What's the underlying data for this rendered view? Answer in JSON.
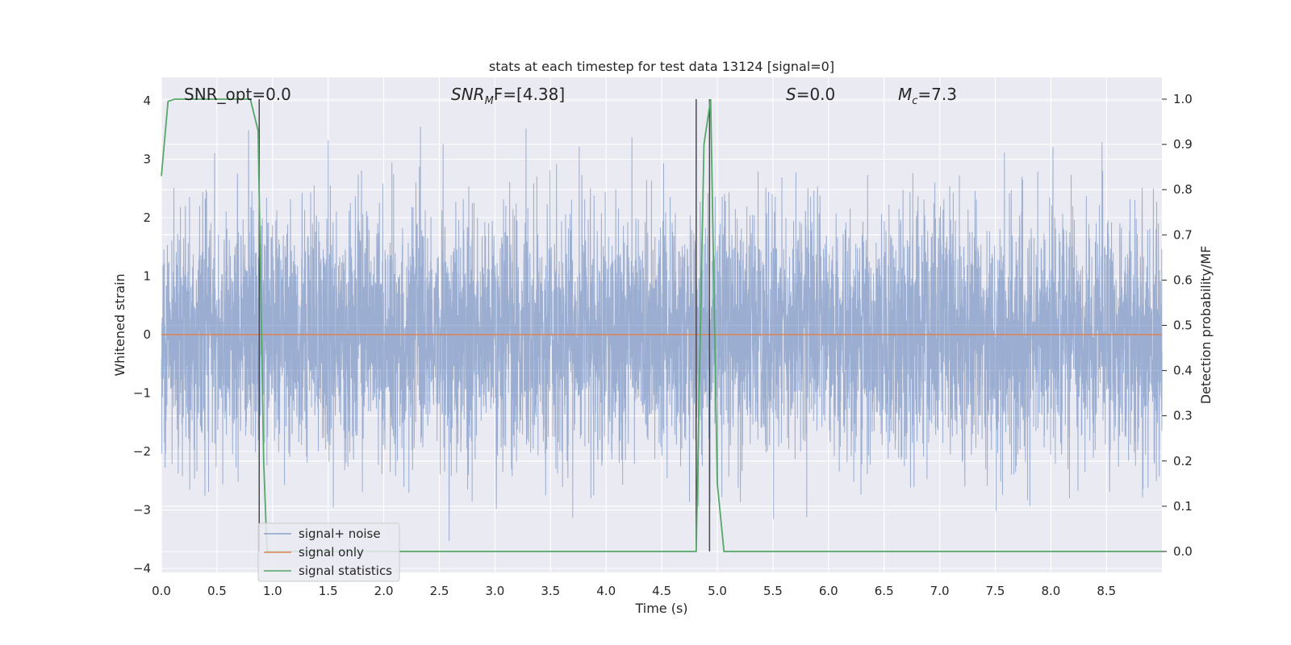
{
  "colors": {
    "plot_bg": "#eaeaf2",
    "grid": "#ffffff",
    "signal_noise": "#4c72b0",
    "signal_only": "#dd8452",
    "signal_stats": "#55a868",
    "vline": "#4a4a4a"
  },
  "chart_data": {
    "type": "line",
    "title": "stats at each timestep for test data 13124 [signal=0]",
    "xlabel": "Time (s)",
    "ylabel": "Whitened strain",
    "ylabel_right": "Detection probability/MF",
    "xlim": [
      0.0,
      9.0
    ],
    "ylim": [
      -4.2,
      4.2
    ],
    "ylim_right": [
      -0.045,
      1.045
    ],
    "xticks": [
      "0.0",
      "0.5",
      "1.0",
      "1.5",
      "2.0",
      "2.5",
      "3.0",
      "3.5",
      "4.0",
      "4.5",
      "5.0",
      "5.5",
      "6.0",
      "6.5",
      "7.0",
      "7.5",
      "8.0",
      "8.5"
    ],
    "yticks": [
      "4",
      "3",
      "2",
      "1",
      "0",
      "−1",
      "−2",
      "−3",
      "−4"
    ],
    "yticks_right": [
      "1.0",
      "0.9",
      "0.8",
      "0.7",
      "0.6",
      "0.5",
      "0.4",
      "0.3",
      "0.2",
      "0.1",
      "0.0"
    ],
    "grid": true,
    "legend_position": "lower-left",
    "annotations": {
      "snr_opt": "SNR_opt=0.0",
      "snr_mf_main": "SNR",
      "snr_mf_sub": "M",
      "snr_mf_rest": "F=[4.38]",
      "s_main": "S",
      "s_rest": "=0.0",
      "mc_main": "M",
      "mc_sub": "c",
      "mc_rest": "=7.3"
    },
    "vertical_lines_x": [
      0.88,
      4.81,
      4.93
    ],
    "series": [
      {
        "name": "signal+ noise",
        "axis": "left",
        "note_style": "dense noise, approx. standard normal, peaks up to 4.0",
        "x_range": [
          0.0,
          9.0
        ],
        "sample_rate_hz": 2048,
        "approx_std": 1.0
      },
      {
        "name": "signal only",
        "axis": "left",
        "x": [
          0.0,
          9.0
        ],
        "values": [
          0.0,
          0.0
        ]
      },
      {
        "name": "signal statistics",
        "axis": "right",
        "x": [
          0.0,
          0.06,
          0.12,
          0.25,
          0.5,
          0.8,
          0.87,
          0.92,
          0.95,
          1.0,
          2.0,
          3.0,
          4.0,
          4.5,
          4.81,
          4.88,
          4.94,
          5.0,
          5.06,
          5.2,
          6.0,
          7.0,
          8.0,
          9.0
        ],
        "values": [
          0.83,
          0.995,
          1.0,
          1.0,
          1.0,
          1.0,
          0.93,
          0.2,
          0.0,
          0.0,
          0.0,
          0.0,
          0.0,
          0.0,
          0.0,
          0.9,
          1.0,
          0.15,
          0.0,
          0.0,
          0.0,
          0.0,
          0.0,
          0.0
        ]
      }
    ]
  }
}
